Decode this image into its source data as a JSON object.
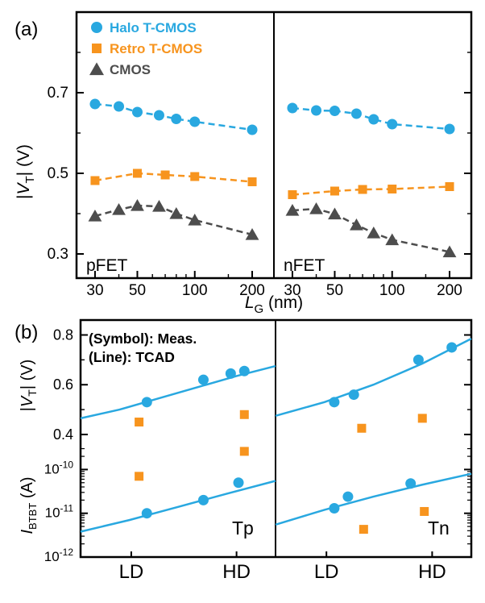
{
  "figure": {
    "panels": [
      {
        "label": "(a)"
      },
      {
        "label": "(b)"
      }
    ]
  },
  "chart_data": [
    {
      "id": "vt-vs-lg",
      "type": "line",
      "panel": "(a)",
      "xlabel": {
        "sym": "L",
        "sub": "G",
        "rest": " (nm)"
      },
      "ylabel": {
        "p0": "|",
        "sym": "V",
        "sub": "T",
        "rest": "| (V)"
      },
      "x_scale": "log",
      "xlim": [
        24,
        260
      ],
      "x_ticks": [
        30,
        50,
        100,
        200
      ],
      "x_minor_ticks": [
        40,
        60,
        70,
        80,
        90,
        150
      ],
      "ylim": [
        0.24,
        0.9
      ],
      "y_ticks": [
        0.3,
        0.5,
        0.7
      ],
      "y_minor_ticks": [
        0.4,
        0.6,
        0.8
      ],
      "grid": false,
      "legend_position": "top-left-inside",
      "legend": [
        {
          "label": "Halo T-CMOS",
          "marker": "circle",
          "color": "#29A8E0"
        },
        {
          "label": "Retro T-CMOS",
          "marker": "square",
          "color": "#F7941E"
        },
        {
          "label": "CMOS",
          "marker": "triangle",
          "color": "#4D4D4D"
        }
      ],
      "subplots": [
        {
          "label": "pFET",
          "series": [
            {
              "name": "Halo T-CMOS",
              "marker": "circle",
              "color": "#29A8E0",
              "linestyle": "dashed",
              "x": [
                30,
                40,
                50,
                65,
                80,
                100,
                200
              ],
              "y": [
                0.672,
                0.666,
                0.652,
                0.644,
                0.635,
                0.628,
                0.608
              ]
            },
            {
              "name": "Retro T-CMOS",
              "marker": "square",
              "color": "#F7941E",
              "linestyle": "dashed",
              "x": [
                30,
                50,
                70,
                100,
                200
              ],
              "y": [
                0.482,
                0.5,
                0.496,
                0.492,
                0.479
              ]
            },
            {
              "name": "CMOS",
              "marker": "triangle",
              "color": "#4D4D4D",
              "linestyle": "dashed",
              "x": [
                30,
                40,
                50,
                65,
                80,
                100,
                200
              ],
              "y": [
                0.394,
                0.41,
                0.42,
                0.418,
                0.4,
                0.384,
                0.348
              ]
            }
          ]
        },
        {
          "label": "nFET",
          "series": [
            {
              "name": "Halo T-CMOS",
              "marker": "circle",
              "color": "#29A8E0",
              "linestyle": "dashed",
              "x": [
                30,
                40,
                50,
                65,
                80,
                100,
                200
              ],
              "y": [
                0.662,
                0.656,
                0.655,
                0.648,
                0.634,
                0.622,
                0.61
              ]
            },
            {
              "name": "Retro T-CMOS",
              "marker": "square",
              "color": "#F7941E",
              "linestyle": "dashed",
              "x": [
                30,
                50,
                70,
                100,
                200
              ],
              "y": [
                0.447,
                0.456,
                0.46,
                0.461,
                0.467
              ]
            },
            {
              "name": "CMOS",
              "marker": "triangle",
              "color": "#4D4D4D",
              "linestyle": "dashed",
              "x": [
                30,
                40,
                50,
                65,
                80,
                100,
                200
              ],
              "y": [
                0.408,
                0.412,
                0.399,
                0.372,
                0.352,
                0.335,
                0.305
              ]
            }
          ]
        }
      ]
    },
    {
      "id": "vt-and-ibtbt-vs-doping",
      "type": "scatter",
      "panel": "(b)",
      "annotations": [
        "(Symbol): Meas.",
        "(Line): TCAD"
      ],
      "x_categories": [
        "LD",
        "HD"
      ],
      "x_category_pos": [
        0.26,
        0.8
      ],
      "top_axis": {
        "ylabel": {
          "p0": "|",
          "sym": "V",
          "sub": "T",
          "rest": "| (V)"
        },
        "scale": "linear",
        "ylim": [
          0.348,
          0.86
        ],
        "ticks": [
          0.4,
          0.6,
          0.8
        ],
        "minor_ticks": [
          0.5,
          0.7
        ]
      },
      "bottom_axis": {
        "ylabel": {
          "p0": "",
          "sym": "I",
          "sub": "BTBT",
          "rest": " (A)"
        },
        "scale": "log",
        "ylim": [
          1e-12,
          3.2e-10
        ],
        "tick_exponents": [
          -10,
          -11,
          -12
        ]
      },
      "subplots": [
        {
          "label": "Tp",
          "vt": {
            "line": {
              "name": "Halo TCAD",
              "color": "#29A8E0",
              "x": [
                0,
                0.2,
                0.4,
                0.6,
                0.8,
                1
              ],
              "y": [
                0.465,
                0.5,
                0.545,
                0.59,
                0.635,
                0.675
              ]
            },
            "points": [
              {
                "name": "Halo T-CMOS",
                "marker": "circle",
                "color": "#29A8E0",
                "x": [
                  0.34,
                  0.63,
                  0.77,
                  0.84
                ],
                "y": [
                  0.53,
                  0.62,
                  0.645,
                  0.655
                ]
              },
              {
                "name": "Retro T-CMOS",
                "marker": "square",
                "color": "#F7941E",
                "x": [
                  0.3,
                  0.84
                ],
                "y": [
                  0.45,
                  0.48
                ]
              }
            ]
          },
          "ibtbt": {
            "line": {
              "name": "Halo TCAD",
              "color": "#29A8E0",
              "x": [
                0,
                0.25,
                0.5,
                0.75,
                1
              ],
              "y": [
                3.8e-12,
                7e-12,
                1.4e-11,
                2.8e-11,
                5.5e-11
              ]
            },
            "points": [
              {
                "name": "Halo T-CMOS",
                "marker": "circle",
                "color": "#29A8E0",
                "x": [
                  0.34,
                  0.63,
                  0.81
                ],
                "y": [
                  1e-11,
                  2e-11,
                  5e-11
                ]
              },
              {
                "name": "Retro T-CMOS",
                "marker": "square",
                "color": "#F7941E",
                "x": [
                  0.3,
                  0.84
                ],
                "y": [
                  7e-11,
                  2.6e-10
                ]
              }
            ]
          }
        },
        {
          "label": "Tn",
          "vt": {
            "line": {
              "name": "Halo TCAD",
              "color": "#29A8E0",
              "x": [
                0,
                0.25,
                0.5,
                0.75,
                1
              ],
              "y": [
                0.475,
                0.53,
                0.6,
                0.685,
                0.785
              ]
            },
            "points": [
              {
                "name": "Halo T-CMOS",
                "marker": "circle",
                "color": "#29A8E0",
                "x": [
                  0.3,
                  0.4,
                  0.73,
                  0.9
                ],
                "y": [
                  0.53,
                  0.56,
                  0.7,
                  0.75
                ]
              },
              {
                "name": "Retro T-CMOS",
                "marker": "square",
                "color": "#F7941E",
                "x": [
                  0.44,
                  0.75
                ],
                "y": [
                  0.425,
                  0.465
                ]
              }
            ]
          },
          "ibtbt": {
            "line": {
              "name": "Halo TCAD",
              "color": "#29A8E0",
              "x": [
                0,
                0.25,
                0.5,
                0.75,
                1
              ],
              "y": [
                5.5e-12,
                1.2e-11,
                2.4e-11,
                4.5e-11,
                8e-11
              ]
            },
            "points": [
              {
                "name": "Halo T-CMOS",
                "marker": "circle",
                "color": "#29A8E0",
                "x": [
                  0.3,
                  0.37,
                  0.69
                ],
                "y": [
                  1.3e-11,
                  2.4e-11,
                  4.8e-11
                ]
              },
              {
                "name": "Retro T-CMOS",
                "marker": "square",
                "color": "#F7941E",
                "x": [
                  0.45,
                  0.76
                ],
                "y": [
                  4.3e-12,
                  1.1e-11
                ]
              }
            ]
          }
        }
      ]
    }
  ]
}
